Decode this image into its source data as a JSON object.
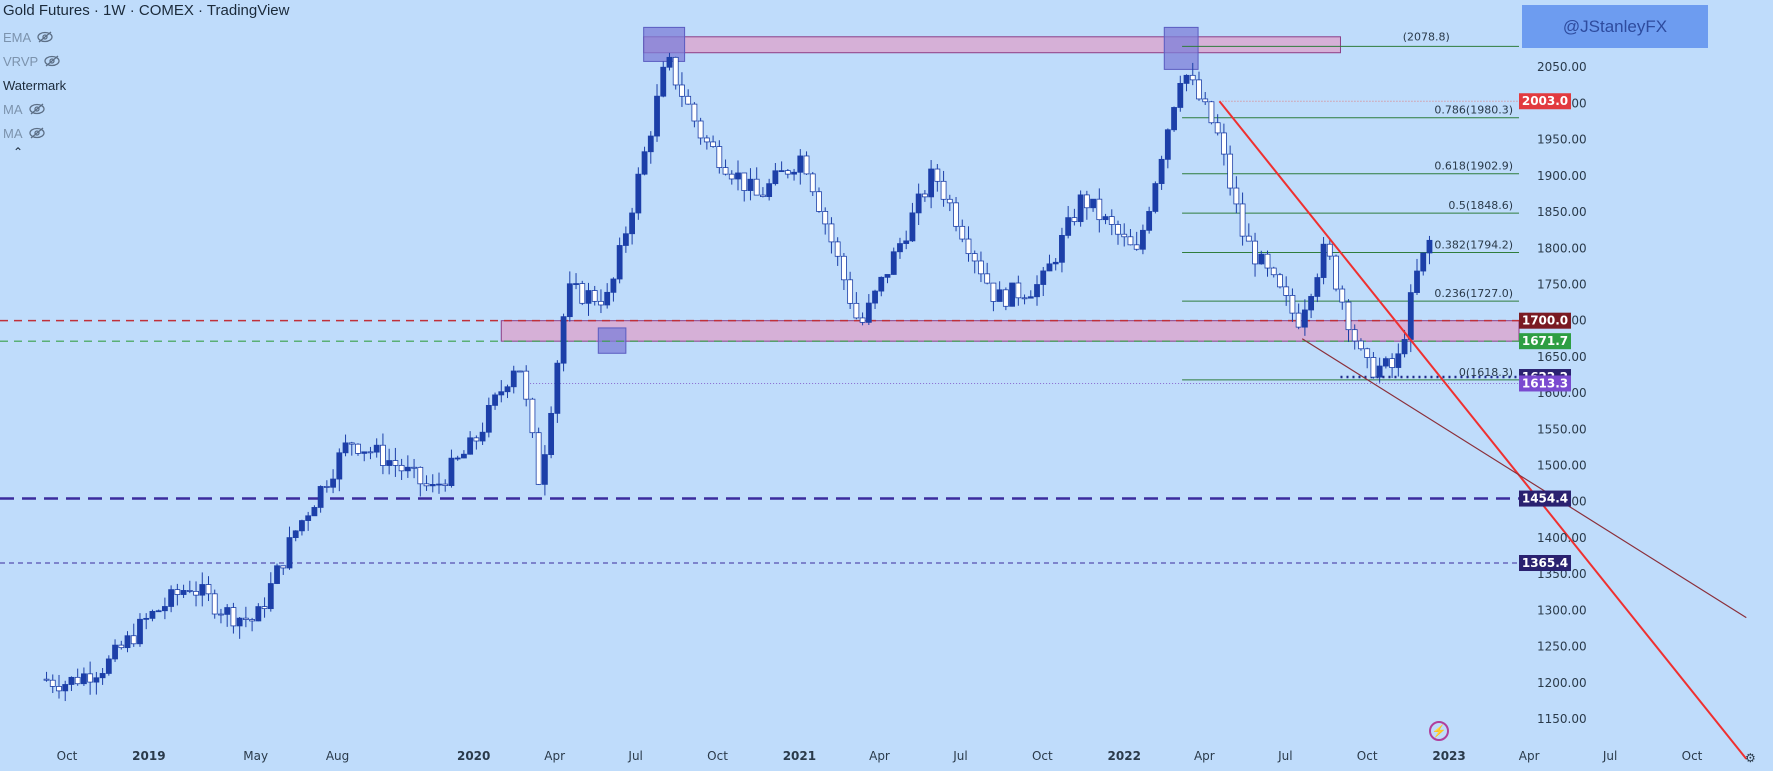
{
  "header": {
    "title": "Gold Futures · 1W · COMEX · TradingView",
    "indicators": [
      {
        "label": "EMA",
        "hidden": true
      },
      {
        "label": "VRVP",
        "hidden": true
      },
      {
        "label": "Watermark",
        "hidden": false
      },
      {
        "label": "MA",
        "hidden": true
      },
      {
        "label": "MA",
        "hidden": true
      }
    ],
    "collapse_icon": "chevron-up-icon"
  },
  "watermark": "@JStanleyFX",
  "colors": {
    "background": "#bfdcfb",
    "bull_candle": "#1c3fa8",
    "bear_candle": "#ffffff",
    "zone_fill": "#d9a8d0",
    "zone_stroke": "#8d3f86",
    "box_fill": "#7d7fd8",
    "fib_line": "#2f7d3c",
    "trend_red": "#ef3030",
    "trend_dark": "#8b2f3a",
    "dashed_navy": "#3b2c9e",
    "dashed_red": "#c0303a",
    "dashed_green": "#39a04a"
  },
  "chart_data": {
    "type": "candlestick",
    "title": "Gold Futures · 1W · COMEX",
    "xlabel": "",
    "ylabel": "",
    "x_ticks": [
      "Oct",
      "2019",
      "May",
      "Aug",
      "2020",
      "Apr",
      "Jul",
      "Oct",
      "2021",
      "Apr",
      "Jul",
      "Oct",
      "2022",
      "Apr",
      "Jul",
      "Oct",
      "2023",
      "Apr",
      "Jul",
      "Oct"
    ],
    "y_ticks": [
      1150,
      1200,
      1250,
      1300,
      1350,
      1400,
      1450,
      1500,
      1550,
      1600,
      1650,
      1700,
      1750,
      1800,
      1850,
      1900,
      1950,
      2000,
      2050,
      2100
    ],
    "ylim": [
      1100,
      2110
    ],
    "grid": false,
    "price_path": [
      {
        "date": "2018-09-01",
        "close": 1205
      },
      {
        "date": "2018-10-01",
        "close": 1200
      },
      {
        "date": "2018-11-15",
        "close": 1225
      },
      {
        "date": "2019-01-01",
        "close": 1290
      },
      {
        "date": "2019-02-15",
        "close": 1335
      },
      {
        "date": "2019-04-01",
        "close": 1295
      },
      {
        "date": "2019-05-01",
        "close": 1285
      },
      {
        "date": "2019-06-15",
        "close": 1410
      },
      {
        "date": "2019-08-15",
        "close": 1535
      },
      {
        "date": "2019-10-01",
        "close": 1505
      },
      {
        "date": "2019-11-15",
        "close": 1465
      },
      {
        "date": "2020-01-01",
        "close": 1530
      },
      {
        "date": "2020-02-20",
        "close": 1650
      },
      {
        "date": "2020-03-15",
        "close": 1475
      },
      {
        "date": "2020-04-15",
        "close": 1740
      },
      {
        "date": "2020-06-01",
        "close": 1730
      },
      {
        "date": "2020-07-15",
        "close": 1950
      },
      {
        "date": "2020-08-05",
        "close": 2060
      },
      {
        "date": "2020-09-15",
        "close": 1950
      },
      {
        "date": "2020-11-15",
        "close": 1870
      },
      {
        "date": "2021-01-05",
        "close": 1930
      },
      {
        "date": "2021-03-10",
        "close": 1690
      },
      {
        "date": "2021-06-01",
        "close": 1905
      },
      {
        "date": "2021-08-10",
        "close": 1730
      },
      {
        "date": "2021-09-30",
        "close": 1750
      },
      {
        "date": "2021-11-15",
        "close": 1870
      },
      {
        "date": "2022-01-15",
        "close": 1790
      },
      {
        "date": "2022-03-07",
        "close": 2050
      },
      {
        "date": "2022-04-15",
        "close": 1960
      },
      {
        "date": "2022-05-15",
        "close": 1815
      },
      {
        "date": "2022-07-15",
        "close": 1700
      },
      {
        "date": "2022-08-15",
        "close": 1800
      },
      {
        "date": "2022-09-28",
        "close": 1635
      },
      {
        "date": "2022-11-03",
        "close": 1635
      },
      {
        "date": "2022-11-25",
        "close": 1760
      },
      {
        "date": "2022-12-12",
        "close": 1815
      }
    ],
    "horizontal_levels": [
      {
        "price": 2003.0,
        "label": "2003.0",
        "tag_color": "#e23a3f"
      },
      {
        "price": 1700.0,
        "label": "1700.0",
        "tag_color": "#7a1a22"
      },
      {
        "price": 1671.7,
        "label": "1671.7",
        "tag_color": "#2e9e43"
      },
      {
        "price": 1622.2,
        "label": "1622.2",
        "tag_color": "#2a2170"
      },
      {
        "price": 1613.3,
        "label": "1613.3",
        "tag_color": "#7a4ad0"
      },
      {
        "price": 1454.4,
        "label": "1454.4",
        "tag_color": "#2a2170"
      },
      {
        "price": 1365.4,
        "label": "1365.4",
        "tag_color": "#2a2170"
      }
    ],
    "fibonacci": [
      {
        "label": "0.786(1980.3)",
        "price": 1980.3
      },
      {
        "label": "0.618(1902.9)",
        "price": 1902.9
      },
      {
        "label": "0.5(1848.6)",
        "price": 1848.6
      },
      {
        "label": "0.382(1794.2)",
        "price": 1794.2
      },
      {
        "label": "0.236(1727.0)",
        "price": 1727.0
      },
      {
        "label": "0(1618.3)",
        "price": 1618.3
      }
    ],
    "fib_top_label": "(2078.8)",
    "fib_top_price": 2078.8,
    "zones": [
      {
        "name": "resistance-zone",
        "from": 2070,
        "to": 2092
      },
      {
        "name": "support-zone",
        "from": 1671.7,
        "to": 1700
      }
    ],
    "trendlines": [
      {
        "name": "red-downtrend",
        "from": {
          "date": "2022-04-18",
          "price": 2003
        },
        "to": {
          "date": "2023-12-01",
          "price": 1095
        }
      },
      {
        "name": "dark-downtrend",
        "from": {
          "date": "2022-07-20",
          "price": 1675
        },
        "to": {
          "date": "2023-12-01",
          "price": 1290
        }
      }
    ]
  }
}
